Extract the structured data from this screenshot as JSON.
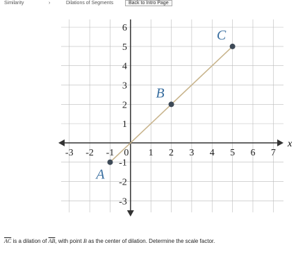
{
  "header": {
    "breadcrumb": [
      "Similarity",
      "Dilations of Segments"
    ],
    "button": "Back to Intro Page"
  },
  "graph": {
    "xlim": [
      -3.4,
      7.5
    ],
    "ylim": [
      -3.6,
      6.4
    ],
    "xticks": [
      -3,
      -2,
      -1,
      0,
      1,
      2,
      3,
      4,
      5,
      6,
      7
    ],
    "yticks": [
      -3,
      -2,
      -1,
      1,
      2,
      3,
      4,
      5,
      6
    ],
    "x_label": "x",
    "points": [
      {
        "label": "A",
        "x": -1,
        "y": -1
      },
      {
        "label": "B",
        "x": 2,
        "y": 2
      },
      {
        "label": "C",
        "x": 5,
        "y": 5
      }
    ]
  },
  "question": {
    "segment1": "AC",
    "part1": "is a dilation of",
    "segment2": "AB",
    "part2": ", with point",
    "point": "B",
    "part3": "as the center of dilation. Determine the scale factor."
  }
}
